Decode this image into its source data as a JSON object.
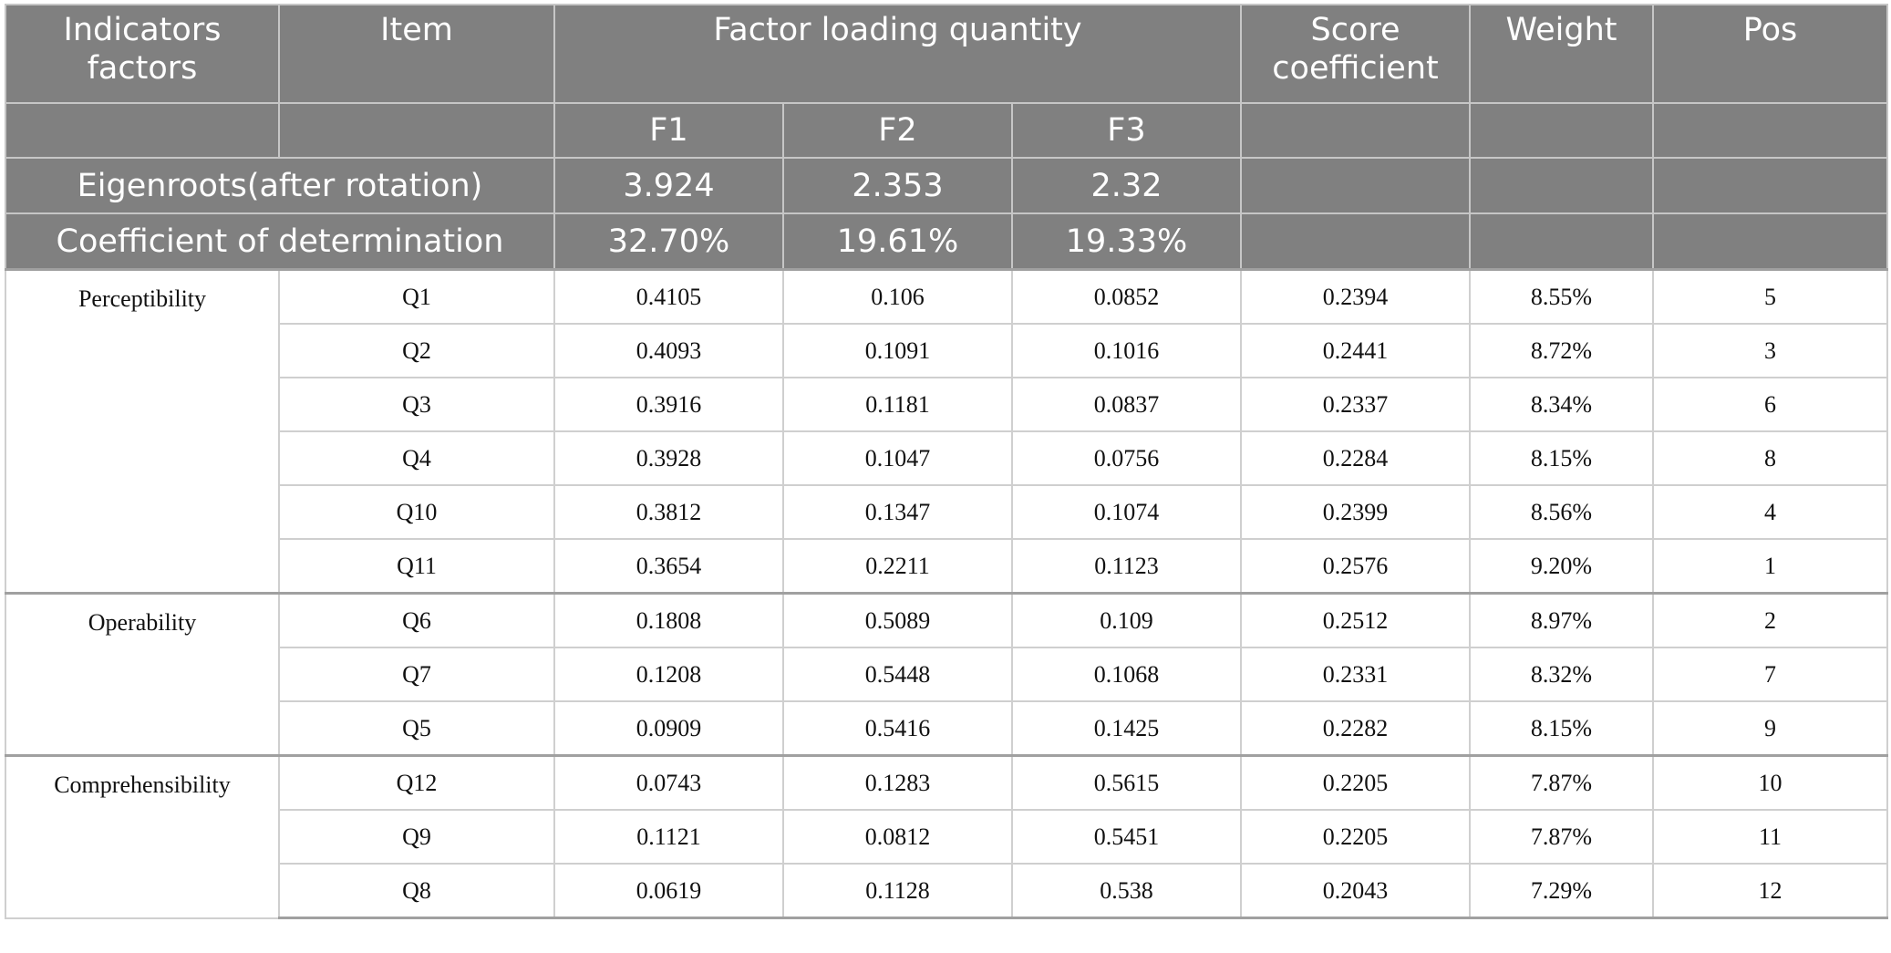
{
  "header": {
    "indicators_factors": "Indicators factors",
    "item": "Item",
    "factor_loading": "Factor loading quantity",
    "score_coefficient": "Score coefficient",
    "weight": "Weight",
    "pos": "Pos",
    "f1": "F1",
    "f2": "F2",
    "f3": "F3",
    "eigen_label": "Eigenroots(after rotation)",
    "eigen_f1": "3.924",
    "eigen_f2": "2.353",
    "eigen_f3": "2.32",
    "coef_label": "Coefficient of determination",
    "coef_f1": "32.70%",
    "coef_f2": "19.61%",
    "coef_f3": "19.33%"
  },
  "groups": [
    {
      "name": "Perceptibility",
      "rows": [
        [
          "Q1",
          "0.4105",
          "0.106",
          "0.0852",
          "0.2394",
          "8.55%",
          "5"
        ],
        [
          "Q2",
          "0.4093",
          "0.1091",
          "0.1016",
          "0.2441",
          "8.72%",
          "3"
        ],
        [
          "Q3",
          "0.3916",
          "0.1181",
          "0.0837",
          "0.2337",
          "8.34%",
          "6"
        ],
        [
          "Q4",
          "0.3928",
          "0.1047",
          "0.0756",
          "0.2284",
          "8.15%",
          "8"
        ],
        [
          "Q10",
          "0.3812",
          "0.1347",
          "0.1074",
          "0.2399",
          "8.56%",
          "4"
        ],
        [
          "Q11",
          "0.3654",
          "0.2211",
          "0.1123",
          "0.2576",
          "9.20%",
          "1"
        ]
      ]
    },
    {
      "name": "Operability",
      "rows": [
        [
          "Q6",
          "0.1808",
          "0.5089",
          "0.109",
          "0.2512",
          "8.97%",
          "2"
        ],
        [
          "Q7",
          "0.1208",
          "0.5448",
          "0.1068",
          "0.2331",
          "8.32%",
          "7"
        ],
        [
          "Q5",
          "0.0909",
          "0.5416",
          "0.1425",
          "0.2282",
          "8.15%",
          "9"
        ]
      ]
    },
    {
      "name": "Comprehensibility",
      "rows": [
        [
          "Q12",
          "0.0743",
          "0.1283",
          "0.5615",
          "0.2205",
          "7.87%",
          "10"
        ],
        [
          "Q9",
          "0.1121",
          "0.0812",
          "0.5451",
          "0.2205",
          "7.87%",
          "11"
        ],
        [
          "Q8",
          "0.0619",
          "0.1128",
          "0.538",
          "0.2043",
          "7.29%",
          "12"
        ]
      ]
    }
  ]
}
